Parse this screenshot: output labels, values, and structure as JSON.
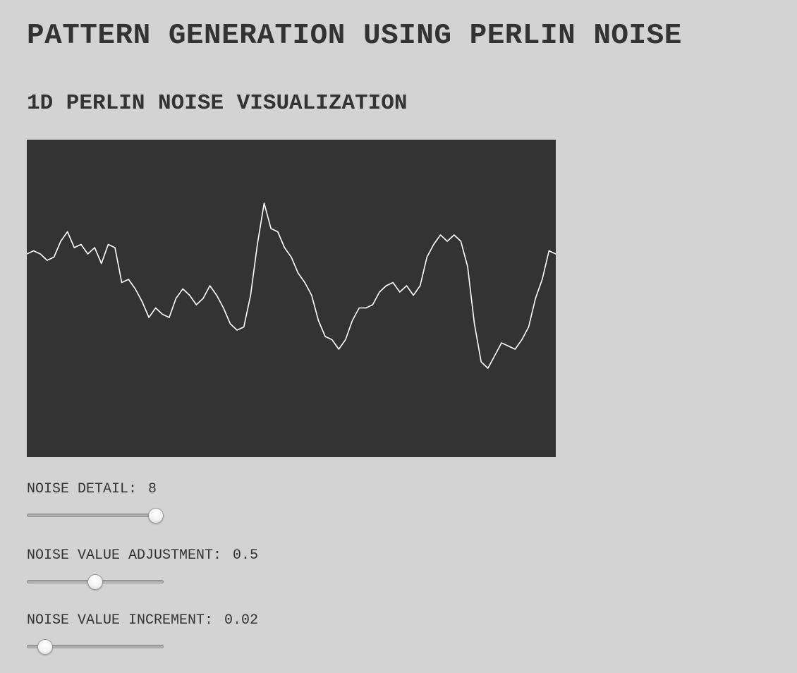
{
  "page": {
    "title": "PATTERN GENERATION USING PERLIN NOISE",
    "section_title": "1D PERLIN NOISE VISUALIZATION"
  },
  "colors": {
    "background": "#d3d3d3",
    "canvas": "#333333",
    "line": "#ffffff",
    "text": "#333333"
  },
  "controls": [
    {
      "label": "NOISE DETAIL:",
      "value": "8",
      "level": 1.0
    },
    {
      "label": "NOISE VALUE ADJUSTMENT:",
      "value": "0.5",
      "level": 0.5
    },
    {
      "label": "NOISE VALUE INCREMENT:",
      "value": "0.02",
      "level": 0.09
    }
  ],
  "chart_data": {
    "type": "line",
    "title": "",
    "xlabel": "",
    "ylabel": "",
    "xlim": [
      0,
      100
    ],
    "ylim": [
      0,
      1
    ],
    "grid": false,
    "series": [
      {
        "values": [
          0.64,
          0.65,
          0.64,
          0.62,
          0.63,
          0.68,
          0.71,
          0.66,
          0.67,
          0.64,
          0.66,
          0.61,
          0.67,
          0.66,
          0.55,
          0.56,
          0.53,
          0.49,
          0.44,
          0.47,
          0.45,
          0.44,
          0.5,
          0.53,
          0.51,
          0.48,
          0.5,
          0.54,
          0.51,
          0.47,
          0.42,
          0.4,
          0.41,
          0.51,
          0.67,
          0.8,
          0.72,
          0.71,
          0.66,
          0.63,
          0.58,
          0.55,
          0.51,
          0.43,
          0.38,
          0.37,
          0.34,
          0.37,
          0.43,
          0.47,
          0.47,
          0.48,
          0.52,
          0.54,
          0.55,
          0.52,
          0.54,
          0.51,
          0.54,
          0.63,
          0.67,
          0.7,
          0.68,
          0.7,
          0.68,
          0.6,
          0.42,
          0.3,
          0.28,
          0.32,
          0.36,
          0.35,
          0.34,
          0.37,
          0.41,
          0.5,
          0.56,
          0.65,
          0.64
        ]
      }
    ]
  }
}
